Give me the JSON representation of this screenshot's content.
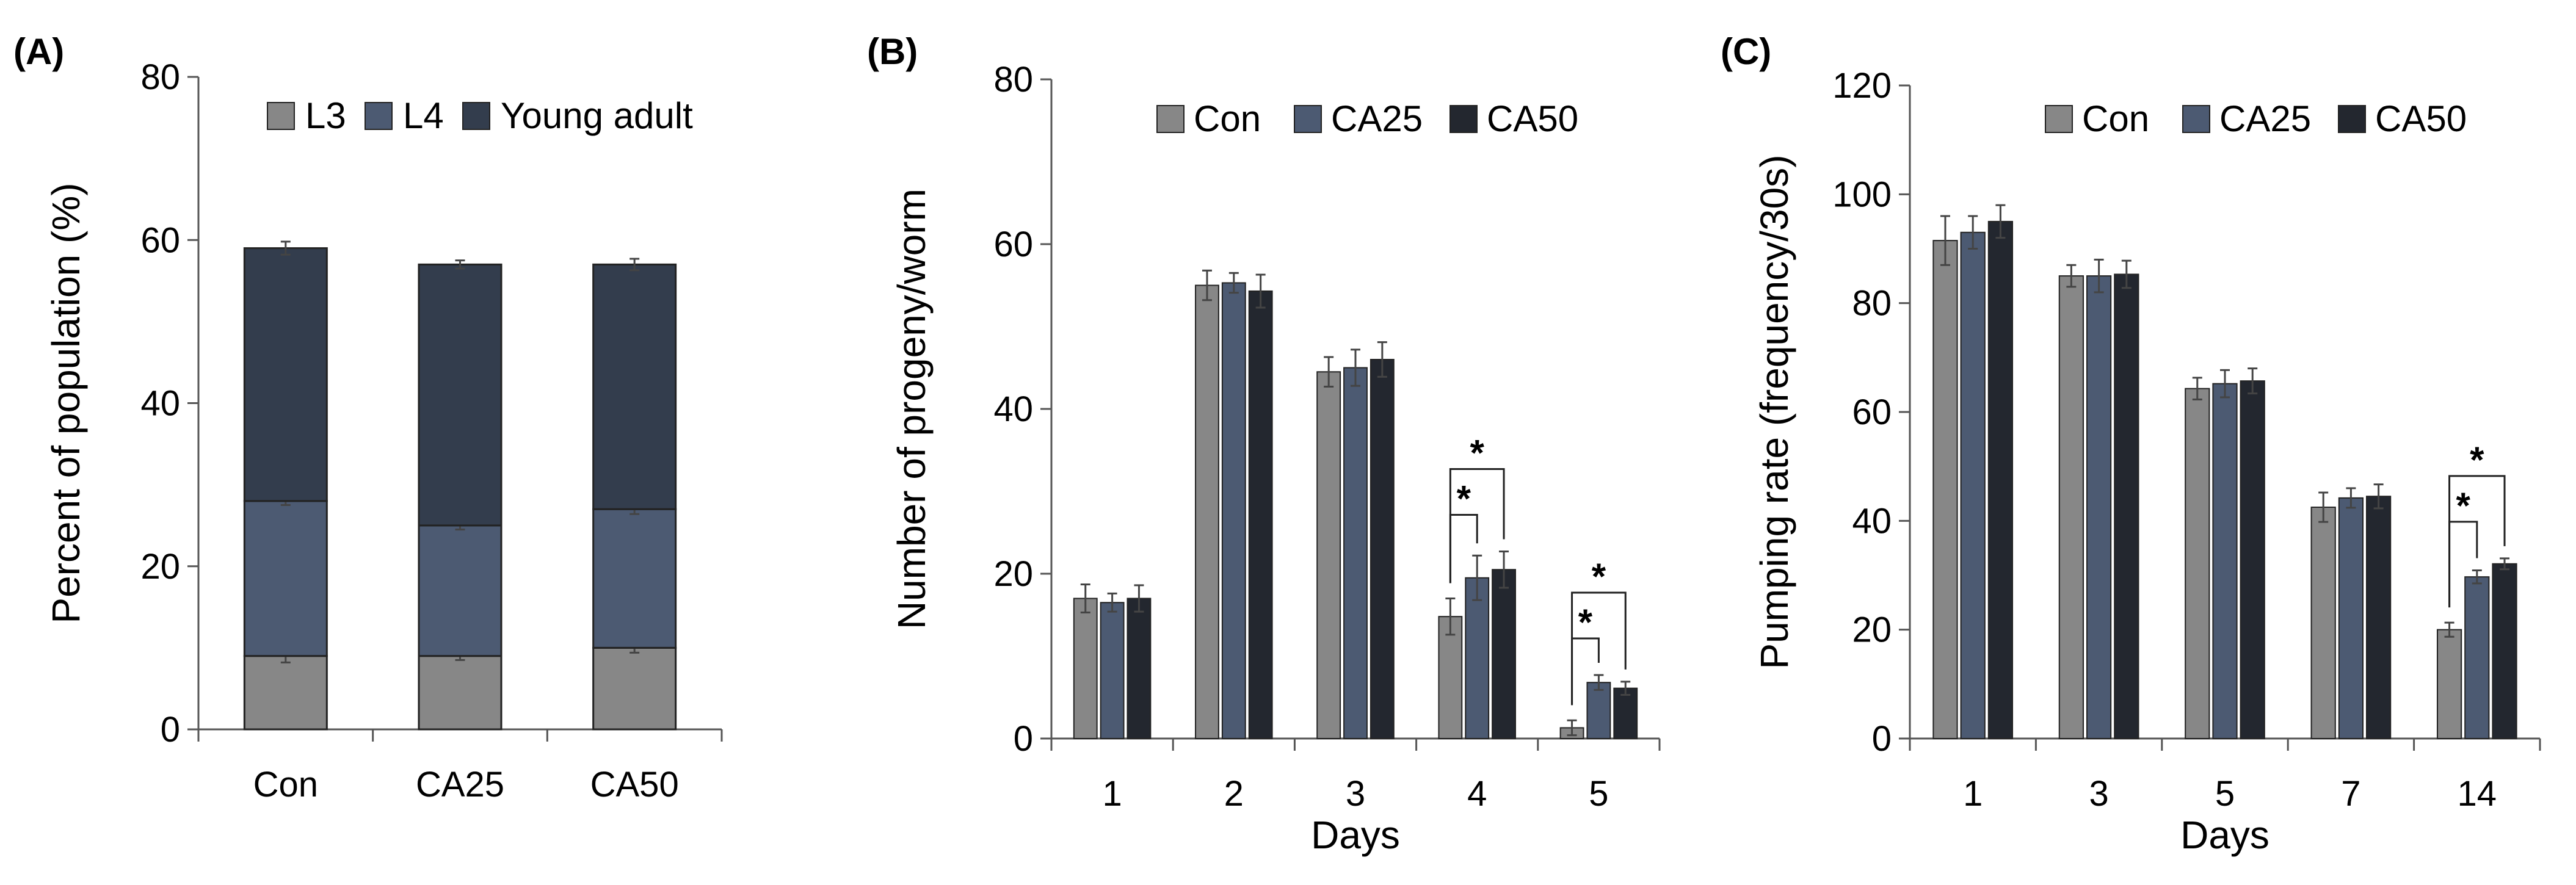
{
  "colors": {
    "L3": "#878787",
    "L4": "#4c5a72",
    "Young adult": "#333d4d",
    "Con": "#878787",
    "CA25": "#4c5a72",
    "CA50": "#23272f"
  },
  "chart_data": [
    {
      "panel": "(A)",
      "type": "bar",
      "stacked": true,
      "categories": [
        "Con",
        "CA25",
        "CA50"
      ],
      "ylabel": "Percent of population (%)",
      "xlabel": "",
      "ylim": [
        0,
        80
      ],
      "yticks": [
        0,
        20,
        40,
        60,
        80
      ],
      "legend_position": "top",
      "series": [
        {
          "name": "L3",
          "values": [
            9,
            9,
            10
          ],
          "errors": [
            0.8,
            0.5,
            0.6
          ]
        },
        {
          "name": "L4",
          "values": [
            19,
            16,
            17
          ],
          "errors": [
            0.5,
            0.5,
            0.6
          ]
        },
        {
          "name": "Young adult",
          "values": [
            31,
            32,
            30
          ],
          "errors": [
            0.8,
            0.5,
            0.7
          ]
        }
      ]
    },
    {
      "panel": "(B)",
      "type": "bar",
      "categories": [
        "1",
        "2",
        "3",
        "4",
        "5"
      ],
      "ylabel": "Number of progeny/worm",
      "xlabel": "Days",
      "ylim": [
        0,
        80
      ],
      "yticks": [
        0,
        20,
        40,
        60,
        80
      ],
      "legend_position": "top",
      "series": [
        {
          "name": "Con",
          "values": [
            17,
            55,
            44.5,
            14.8,
            1.3
          ],
          "errors": [
            1.7,
            1.8,
            1.8,
            2.2,
            0.9
          ]
        },
        {
          "name": "CA25",
          "values": [
            16.5,
            55.3,
            45,
            19.5,
            6.8
          ],
          "errors": [
            1.1,
            1.2,
            2.2,
            2.7,
            0.9
          ]
        },
        {
          "name": "CA50",
          "values": [
            17,
            54.3,
            46,
            20.5,
            6.1
          ],
          "errors": [
            1.6,
            2.0,
            2.1,
            2.2,
            0.8
          ]
        }
      ],
      "significance": [
        {
          "category": "4",
          "pairs": [
            [
              "Con",
              "CA25"
            ],
            [
              "Con",
              "CA50"
            ]
          ],
          "label": "*"
        },
        {
          "category": "5",
          "pairs": [
            [
              "Con",
              "CA25"
            ],
            [
              "Con",
              "CA50"
            ]
          ],
          "label": "*"
        }
      ]
    },
    {
      "panel": "(C)",
      "type": "bar",
      "categories": [
        "1",
        "3",
        "5",
        "7",
        "14"
      ],
      "ylabel": "Pumping rate (frequency/30s)",
      "xlabel": "Days",
      "ylim": [
        0,
        120
      ],
      "yticks": [
        0,
        20,
        40,
        60,
        80,
        100,
        120
      ],
      "legend_position": "top",
      "series": [
        {
          "name": "Con",
          "values": [
            91.5,
            85,
            64.3,
            42.5,
            20
          ],
          "errors": [
            4.5,
            2.0,
            2.0,
            2.7,
            1.3
          ]
        },
        {
          "name": "CA25",
          "values": [
            93,
            85,
            65.2,
            44.2,
            29.7
          ],
          "errors": [
            3.0,
            3.0,
            2.5,
            1.8,
            1.2
          ]
        },
        {
          "name": "CA50",
          "values": [
            95,
            85.3,
            65.7,
            44.5,
            32.1
          ],
          "errors": [
            3.0,
            2.5,
            2.3,
            2.2,
            1.0
          ]
        }
      ],
      "significance": [
        {
          "category": "14",
          "pairs": [
            [
              "Con",
              "CA25"
            ],
            [
              "Con",
              "CA50"
            ]
          ],
          "label": "*"
        }
      ]
    }
  ]
}
